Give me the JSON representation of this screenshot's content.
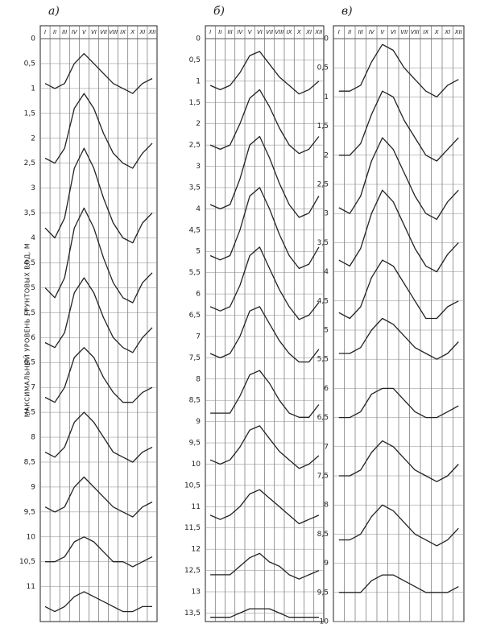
{
  "chart_data": [
    {
      "type": "line",
      "title": "а)",
      "y_label": "МАКСИМАЛЬНЫЙ УРОВЕНЬ ГРУНТОВЫХ ВОД, М",
      "color": "#222",
      "grid": true,
      "y_inverted": true,
      "categories": [
        "I",
        "II",
        "III",
        "IV",
        "V",
        "VI",
        "VII",
        "VIII",
        "IX",
        "X",
        "XI",
        "XII"
      ],
      "ylim": [
        0,
        11.7
      ],
      "yticks": [
        0,
        {
          "value": 0.5,
          "label": "0,5"
        },
        1,
        {
          "value": 1.5,
          "label": "1,5"
        },
        2,
        {
          "value": 2.5,
          "label": "2,5"
        },
        3,
        {
          "value": 3.5,
          "label": "3,5"
        },
        4,
        {
          "value": 4.5,
          "label": "4,5"
        },
        5,
        {
          "value": 5.5,
          "label": "5,5"
        },
        6,
        {
          "value": 6.5,
          "label": "6,5"
        },
        7,
        {
          "value": 7.5,
          "label": "7,5"
        },
        8,
        {
          "value": 8.5,
          "label": "8,5"
        },
        9,
        {
          "value": 9.5,
          "label": "9,5"
        },
        10,
        {
          "value": 10.5,
          "label": "10,5"
        },
        11
      ],
      "series": [
        {
          "values": [
            0.9,
            1.0,
            0.9,
            0.5,
            0.3,
            0.5,
            0.7,
            0.9,
            1.0,
            1.1,
            0.9,
            0.8
          ]
        },
        {
          "values": [
            2.4,
            2.5,
            2.2,
            1.4,
            1.1,
            1.4,
            1.9,
            2.3,
            2.5,
            2.6,
            2.3,
            2.1
          ]
        },
        {
          "values": [
            3.8,
            4.0,
            3.6,
            2.6,
            2.2,
            2.6,
            3.2,
            3.7,
            4.0,
            4.1,
            3.7,
            3.5
          ]
        },
        {
          "values": [
            5.0,
            5.2,
            4.8,
            3.8,
            3.4,
            3.8,
            4.4,
            4.9,
            5.2,
            5.3,
            4.9,
            4.7
          ]
        },
        {
          "values": [
            6.1,
            6.2,
            5.9,
            5.1,
            4.8,
            5.1,
            5.6,
            6.0,
            6.2,
            6.3,
            6.0,
            5.8
          ]
        },
        {
          "values": [
            7.2,
            7.3,
            7.0,
            6.4,
            6.2,
            6.4,
            6.8,
            7.1,
            7.3,
            7.3,
            7.1,
            7.0
          ]
        },
        {
          "values": [
            8.3,
            8.4,
            8.2,
            7.7,
            7.5,
            7.7,
            8.0,
            8.3,
            8.4,
            8.5,
            8.3,
            8.2
          ]
        },
        {
          "values": [
            9.4,
            9.5,
            9.4,
            9.0,
            8.8,
            9.0,
            9.2,
            9.4,
            9.5,
            9.6,
            9.4,
            9.3
          ]
        },
        {
          "values": [
            10.5,
            10.5,
            10.4,
            10.1,
            10.0,
            10.1,
            10.3,
            10.5,
            10.5,
            10.6,
            10.5,
            10.4
          ]
        },
        {
          "values": [
            11.4,
            11.5,
            11.4,
            11.2,
            11.1,
            11.2,
            11.3,
            11.4,
            11.5,
            11.5,
            11.4,
            11.4
          ]
        }
      ]
    },
    {
      "type": "line",
      "title": "б)",
      "color": "#222",
      "grid": true,
      "y_inverted": true,
      "categories": [
        "I",
        "II",
        "III",
        "IV",
        "V",
        "VI",
        "VII",
        "VIII",
        "IX",
        "X",
        "XI",
        "XII"
      ],
      "ylim": [
        0,
        13.7
      ],
      "yticks": [
        0,
        {
          "value": 0.5,
          "label": "0,5"
        },
        1,
        {
          "value": 1.5,
          "label": "1,5"
        },
        2,
        {
          "value": 2.5,
          "label": "2,5"
        },
        3,
        {
          "value": 3.5,
          "label": "3,5"
        },
        4,
        {
          "value": 4.5,
          "label": "4,5"
        },
        5,
        {
          "value": 5.5,
          "label": "5,5"
        },
        6,
        {
          "value": 6.5,
          "label": "6,5"
        },
        7,
        {
          "value": 7.5,
          "label": "7,5"
        },
        8,
        {
          "value": 8.5,
          "label": "8,5"
        },
        9,
        {
          "value": 9.5,
          "label": "9,5"
        },
        10,
        {
          "value": 10.5,
          "label": "10,5"
        },
        11,
        {
          "value": 11.5,
          "label": "11,5"
        },
        12,
        {
          "value": 12.5,
          "label": "12,5"
        },
        13,
        {
          "value": 13.5,
          "label": "13,5"
        }
      ],
      "series": [
        {
          "values": [
            1.1,
            1.2,
            1.1,
            0.8,
            0.4,
            0.3,
            0.6,
            0.9,
            1.1,
            1.3,
            1.2,
            1.0
          ]
        },
        {
          "values": [
            2.5,
            2.6,
            2.5,
            2.0,
            1.4,
            1.2,
            1.6,
            2.1,
            2.5,
            2.7,
            2.6,
            2.3
          ]
        },
        {
          "values": [
            3.9,
            4.0,
            3.9,
            3.3,
            2.5,
            2.3,
            2.8,
            3.4,
            3.9,
            4.2,
            4.1,
            3.7
          ]
        },
        {
          "values": [
            5.1,
            5.2,
            5.1,
            4.5,
            3.7,
            3.5,
            4.0,
            4.6,
            5.1,
            5.4,
            5.3,
            4.9
          ]
        },
        {
          "values": [
            6.3,
            6.4,
            6.3,
            5.8,
            5.1,
            4.9,
            5.4,
            5.9,
            6.3,
            6.6,
            6.5,
            6.2
          ]
        },
        {
          "values": [
            7.4,
            7.5,
            7.4,
            7.0,
            6.4,
            6.3,
            6.7,
            7.1,
            7.4,
            7.6,
            7.6,
            7.3
          ]
        },
        {
          "values": [
            8.8,
            8.8,
            8.8,
            8.4,
            7.9,
            7.8,
            8.1,
            8.5,
            8.8,
            8.9,
            8.9,
            8.6
          ]
        },
        {
          "values": [
            9.9,
            10.0,
            9.9,
            9.6,
            9.2,
            9.1,
            9.4,
            9.7,
            9.9,
            10.1,
            10.0,
            9.8
          ]
        },
        {
          "values": [
            11.2,
            11.3,
            11.2,
            11.0,
            10.7,
            10.6,
            10.8,
            11.0,
            11.2,
            11.4,
            11.3,
            11.2
          ]
        },
        {
          "values": [
            12.6,
            12.6,
            12.6,
            12.4,
            12.2,
            12.1,
            12.3,
            12.4,
            12.6,
            12.7,
            12.6,
            12.5
          ]
        },
        {
          "values": [
            13.6,
            13.6,
            13.6,
            13.5,
            13.4,
            13.4,
            13.4,
            13.5,
            13.6,
            13.6,
            13.6,
            13.6
          ]
        }
      ]
    },
    {
      "type": "line",
      "title": "в)",
      "color": "#222",
      "grid": true,
      "y_inverted": true,
      "categories": [
        "I",
        "II",
        "III",
        "IV",
        "V",
        "VI",
        "VII",
        "VIII",
        "IX",
        "X",
        "XI",
        "XII"
      ],
      "ylim": [
        0,
        10
      ],
      "yticks": [
        0,
        {
          "value": 0.5,
          "label": "0,5"
        },
        1,
        {
          "value": 1.5,
          "label": "1,5"
        },
        2,
        {
          "value": 2.5,
          "label": "2,5"
        },
        3,
        {
          "value": 3.5,
          "label": "3,5"
        },
        4,
        {
          "value": 4.5,
          "label": "4,5"
        },
        5,
        {
          "value": 5.5,
          "label": "5,5"
        },
        6,
        {
          "value": 6.5,
          "label": "6,5"
        },
        7,
        {
          "value": 7.5,
          "label": "7,5"
        },
        8,
        {
          "value": 8.5,
          "label": "8,5"
        },
        9,
        {
          "value": 9.5,
          "label": "9,5"
        },
        10
      ],
      "series": [
        {
          "values": [
            0.9,
            0.9,
            0.8,
            0.4,
            0.1,
            0.2,
            0.5,
            0.7,
            0.9,
            1.0,
            0.8,
            0.7
          ]
        },
        {
          "values": [
            2.0,
            2.0,
            1.8,
            1.3,
            0.9,
            1.0,
            1.4,
            1.7,
            2.0,
            2.1,
            1.9,
            1.7
          ]
        },
        {
          "values": [
            2.9,
            3.0,
            2.7,
            2.1,
            1.7,
            1.9,
            2.3,
            2.7,
            3.0,
            3.1,
            2.8,
            2.6
          ]
        },
        {
          "values": [
            3.8,
            3.9,
            3.6,
            3.0,
            2.6,
            2.8,
            3.2,
            3.6,
            3.9,
            4.0,
            3.7,
            3.5
          ]
        },
        {
          "values": [
            4.7,
            4.8,
            4.6,
            4.1,
            3.8,
            3.9,
            4.2,
            4.5,
            4.8,
            4.8,
            4.6,
            4.5
          ]
        },
        {
          "values": [
            5.4,
            5.4,
            5.3,
            5.0,
            4.8,
            4.9,
            5.1,
            5.3,
            5.4,
            5.5,
            5.4,
            5.2
          ]
        },
        {
          "values": [
            6.5,
            6.5,
            6.4,
            6.1,
            6.0,
            6.0,
            6.2,
            6.4,
            6.5,
            6.5,
            6.4,
            6.3
          ]
        },
        {
          "values": [
            7.5,
            7.5,
            7.4,
            7.1,
            6.9,
            7.0,
            7.2,
            7.4,
            7.5,
            7.6,
            7.5,
            7.3
          ]
        },
        {
          "values": [
            8.6,
            8.6,
            8.5,
            8.2,
            8.0,
            8.1,
            8.3,
            8.5,
            8.6,
            8.7,
            8.6,
            8.4
          ]
        },
        {
          "values": [
            9.5,
            9.5,
            9.5,
            9.3,
            9.2,
            9.2,
            9.3,
            9.4,
            9.5,
            9.5,
            9.5,
            9.4
          ]
        }
      ]
    }
  ]
}
